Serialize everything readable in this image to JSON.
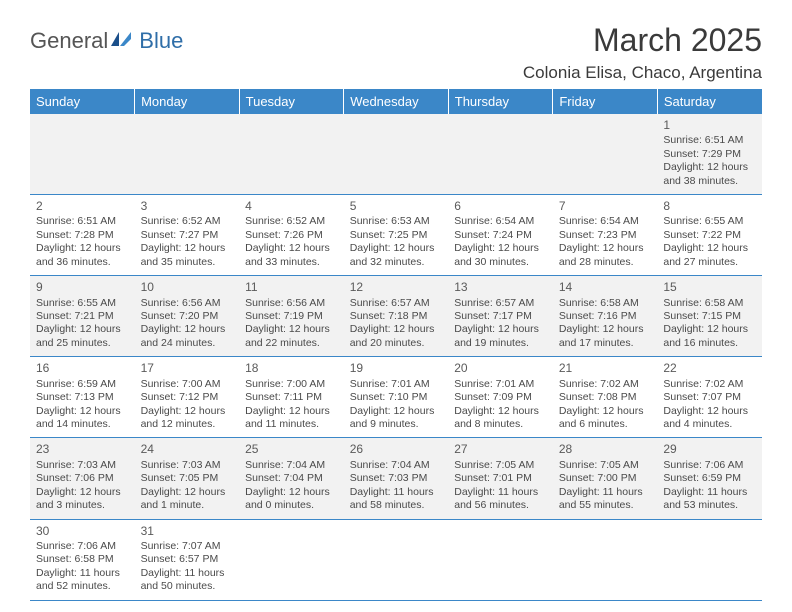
{
  "logo": {
    "part1": "General",
    "part2": "Blue"
  },
  "title": "March 2025",
  "location": "Colonia Elisa, Chaco, Argentina",
  "weekdays": [
    "Sunday",
    "Monday",
    "Tuesday",
    "Wednesday",
    "Thursday",
    "Friday",
    "Saturday"
  ],
  "colors": {
    "header_bg": "#3b87c8",
    "header_text": "#ffffff",
    "alt_row_bg": "#f2f2f2",
    "row_bg": "#ffffff",
    "border": "#3b87c8",
    "text": "#4a4a4a",
    "title_text": "#3a3a3a"
  },
  "rows": [
    [
      null,
      null,
      null,
      null,
      null,
      null,
      {
        "n": "1",
        "sr": "Sunrise: 6:51 AM",
        "ss": "Sunset: 7:29 PM",
        "d1": "Daylight: 12 hours",
        "d2": "and 38 minutes."
      }
    ],
    [
      {
        "n": "2",
        "sr": "Sunrise: 6:51 AM",
        "ss": "Sunset: 7:28 PM",
        "d1": "Daylight: 12 hours",
        "d2": "and 36 minutes."
      },
      {
        "n": "3",
        "sr": "Sunrise: 6:52 AM",
        "ss": "Sunset: 7:27 PM",
        "d1": "Daylight: 12 hours",
        "d2": "and 35 minutes."
      },
      {
        "n": "4",
        "sr": "Sunrise: 6:52 AM",
        "ss": "Sunset: 7:26 PM",
        "d1": "Daylight: 12 hours",
        "d2": "and 33 minutes."
      },
      {
        "n": "5",
        "sr": "Sunrise: 6:53 AM",
        "ss": "Sunset: 7:25 PM",
        "d1": "Daylight: 12 hours",
        "d2": "and 32 minutes."
      },
      {
        "n": "6",
        "sr": "Sunrise: 6:54 AM",
        "ss": "Sunset: 7:24 PM",
        "d1": "Daylight: 12 hours",
        "d2": "and 30 minutes."
      },
      {
        "n": "7",
        "sr": "Sunrise: 6:54 AM",
        "ss": "Sunset: 7:23 PM",
        "d1": "Daylight: 12 hours",
        "d2": "and 28 minutes."
      },
      {
        "n": "8",
        "sr": "Sunrise: 6:55 AM",
        "ss": "Sunset: 7:22 PM",
        "d1": "Daylight: 12 hours",
        "d2": "and 27 minutes."
      }
    ],
    [
      {
        "n": "9",
        "sr": "Sunrise: 6:55 AM",
        "ss": "Sunset: 7:21 PM",
        "d1": "Daylight: 12 hours",
        "d2": "and 25 minutes."
      },
      {
        "n": "10",
        "sr": "Sunrise: 6:56 AM",
        "ss": "Sunset: 7:20 PM",
        "d1": "Daylight: 12 hours",
        "d2": "and 24 minutes."
      },
      {
        "n": "11",
        "sr": "Sunrise: 6:56 AM",
        "ss": "Sunset: 7:19 PM",
        "d1": "Daylight: 12 hours",
        "d2": "and 22 minutes."
      },
      {
        "n": "12",
        "sr": "Sunrise: 6:57 AM",
        "ss": "Sunset: 7:18 PM",
        "d1": "Daylight: 12 hours",
        "d2": "and 20 minutes."
      },
      {
        "n": "13",
        "sr": "Sunrise: 6:57 AM",
        "ss": "Sunset: 7:17 PM",
        "d1": "Daylight: 12 hours",
        "d2": "and 19 minutes."
      },
      {
        "n": "14",
        "sr": "Sunrise: 6:58 AM",
        "ss": "Sunset: 7:16 PM",
        "d1": "Daylight: 12 hours",
        "d2": "and 17 minutes."
      },
      {
        "n": "15",
        "sr": "Sunrise: 6:58 AM",
        "ss": "Sunset: 7:15 PM",
        "d1": "Daylight: 12 hours",
        "d2": "and 16 minutes."
      }
    ],
    [
      {
        "n": "16",
        "sr": "Sunrise: 6:59 AM",
        "ss": "Sunset: 7:13 PM",
        "d1": "Daylight: 12 hours",
        "d2": "and 14 minutes."
      },
      {
        "n": "17",
        "sr": "Sunrise: 7:00 AM",
        "ss": "Sunset: 7:12 PM",
        "d1": "Daylight: 12 hours",
        "d2": "and 12 minutes."
      },
      {
        "n": "18",
        "sr": "Sunrise: 7:00 AM",
        "ss": "Sunset: 7:11 PM",
        "d1": "Daylight: 12 hours",
        "d2": "and 11 minutes."
      },
      {
        "n": "19",
        "sr": "Sunrise: 7:01 AM",
        "ss": "Sunset: 7:10 PM",
        "d1": "Daylight: 12 hours",
        "d2": "and 9 minutes."
      },
      {
        "n": "20",
        "sr": "Sunrise: 7:01 AM",
        "ss": "Sunset: 7:09 PM",
        "d1": "Daylight: 12 hours",
        "d2": "and 8 minutes."
      },
      {
        "n": "21",
        "sr": "Sunrise: 7:02 AM",
        "ss": "Sunset: 7:08 PM",
        "d1": "Daylight: 12 hours",
        "d2": "and 6 minutes."
      },
      {
        "n": "22",
        "sr": "Sunrise: 7:02 AM",
        "ss": "Sunset: 7:07 PM",
        "d1": "Daylight: 12 hours",
        "d2": "and 4 minutes."
      }
    ],
    [
      {
        "n": "23",
        "sr": "Sunrise: 7:03 AM",
        "ss": "Sunset: 7:06 PM",
        "d1": "Daylight: 12 hours",
        "d2": "and 3 minutes."
      },
      {
        "n": "24",
        "sr": "Sunrise: 7:03 AM",
        "ss": "Sunset: 7:05 PM",
        "d1": "Daylight: 12 hours",
        "d2": "and 1 minute."
      },
      {
        "n": "25",
        "sr": "Sunrise: 7:04 AM",
        "ss": "Sunset: 7:04 PM",
        "d1": "Daylight: 12 hours",
        "d2": "and 0 minutes."
      },
      {
        "n": "26",
        "sr": "Sunrise: 7:04 AM",
        "ss": "Sunset: 7:03 PM",
        "d1": "Daylight: 11 hours",
        "d2": "and 58 minutes."
      },
      {
        "n": "27",
        "sr": "Sunrise: 7:05 AM",
        "ss": "Sunset: 7:01 PM",
        "d1": "Daylight: 11 hours",
        "d2": "and 56 minutes."
      },
      {
        "n": "28",
        "sr": "Sunrise: 7:05 AM",
        "ss": "Sunset: 7:00 PM",
        "d1": "Daylight: 11 hours",
        "d2": "and 55 minutes."
      },
      {
        "n": "29",
        "sr": "Sunrise: 7:06 AM",
        "ss": "Sunset: 6:59 PM",
        "d1": "Daylight: 11 hours",
        "d2": "and 53 minutes."
      }
    ],
    [
      {
        "n": "30",
        "sr": "Sunrise: 7:06 AM",
        "ss": "Sunset: 6:58 PM",
        "d1": "Daylight: 11 hours",
        "d2": "and 52 minutes."
      },
      {
        "n": "31",
        "sr": "Sunrise: 7:07 AM",
        "ss": "Sunset: 6:57 PM",
        "d1": "Daylight: 11 hours",
        "d2": "and 50 minutes."
      },
      null,
      null,
      null,
      null,
      null
    ]
  ]
}
